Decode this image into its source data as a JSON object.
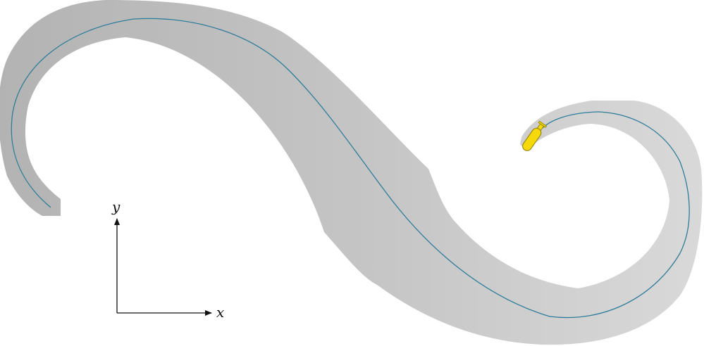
{
  "colors": {
    "background": "#ffffff",
    "band_dark": "#b3b3b3",
    "band_mid": "#c6c6c6",
    "band_light": "#d9d9d9",
    "centerline": "#2e7d9a",
    "vehicle_fill": "#f5d90a",
    "vehicle_stroke": "#9a8a10",
    "axis": "#111111"
  },
  "axes": {
    "x_label": "x",
    "y_label": "y"
  },
  "icons": {
    "vehicle": "submarine-icon",
    "axis_arrow": "arrowhead-icon"
  }
}
